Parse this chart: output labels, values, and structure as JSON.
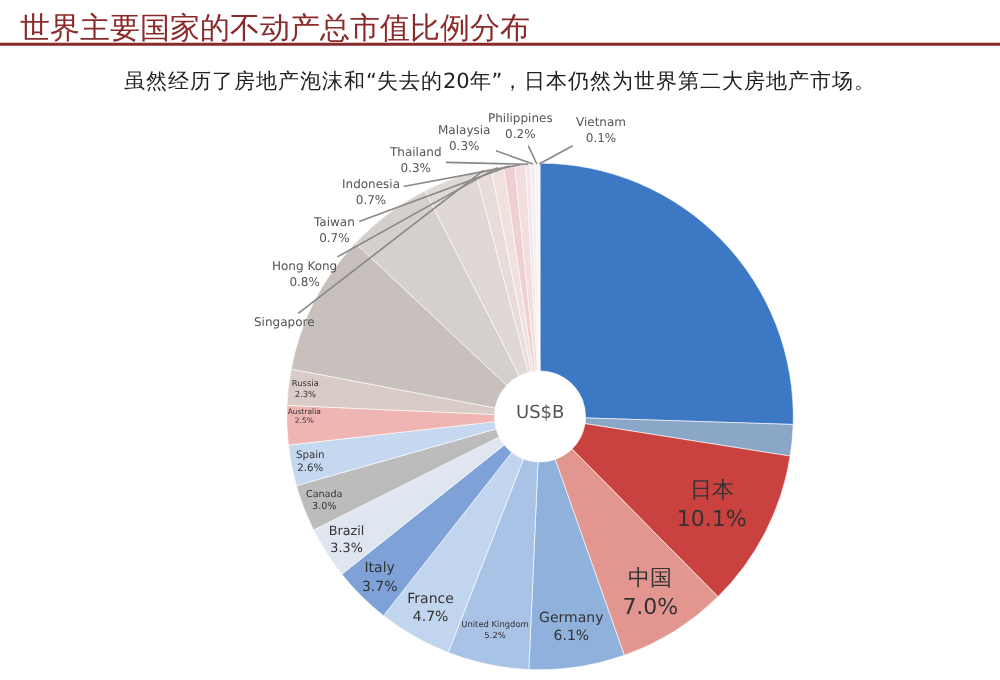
{
  "chart_data": {
    "type": "donut",
    "title": "世界主要国家的不动产总市值比例分布",
    "subtitle": "虽然经历了房地产泡沫和“失去的20年”，日本仍然为世界第二大房地产市场。",
    "categories": [
      null,
      null,
      "日本",
      "中国",
      "Germany",
      "United Kingdom",
      "France",
      "Italy",
      "Brazil",
      "Canada",
      "Spain",
      "Australia",
      "Russia",
      null,
      null,
      null,
      "Singapore",
      "Hong Kong",
      "Taiwan",
      "Indonesia",
      "Thailand",
      "Malaysia",
      "Philippines",
      "Vietnam"
    ],
    "values": [
      25.5,
      2.0,
      10.1,
      7.0,
      6.1,
      5.2,
      4.7,
      3.7,
      3.3,
      3.0,
      2.6,
      2.5,
      2.3,
      9.0,
      5.5,
      3.4,
      1.0,
      0.8,
      0.7,
      0.7,
      0.3,
      0.3,
      0.2,
      0.1
    ],
    "value_labels": [
      null,
      null,
      "10.1%",
      "7.0%",
      "6.1%",
      "5.2%",
      "4.7%",
      "3.7%",
      "3.3%",
      "3.0%",
      "2.6%",
      "2.5%",
      "2.3%",
      null,
      null,
      null,
      null,
      "0.8%",
      "0.7%",
      "0.7%",
      "0.3%",
      "0.3%",
      "0.2%",
      "0.1%"
    ],
    "colors": [
      "#3d78c4",
      "#8aa7c8",
      "#c9423f",
      "#e39690",
      "#8fb1dc",
      "#a9c3e6",
      "#c2d5ee",
      "#7ea2d8",
      "#dfe6f0",
      "#bcbcbc",
      "#c5d8ef",
      "#eeb5b3",
      "#d9ccc6",
      "#c8c0bc",
      "#d6d0cc",
      "#e0d8d4",
      "#e8dcd8",
      "#f0e0de",
      "#efcfcf",
      "#f2dede",
      "#f3e6e6",
      "#f5eeee",
      "#f7f2f2",
      "#eaf0f7"
    ],
    "annotations": [
      "US$B"
    ],
    "legend": false
  }
}
